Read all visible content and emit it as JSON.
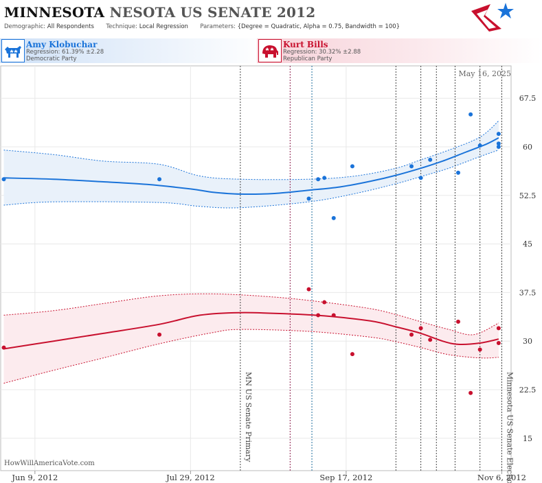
{
  "header": {
    "title_main": "MINNESOTA",
    "title_rest": "NESOTA US SENATE 2012",
    "demographic_label": "Demographic:",
    "demographic_value": "All Respondents",
    "technique_label": "Technique:",
    "technique_value": "Local Regression",
    "parameters_label": "Parameters:",
    "parameters_value": "{Degree = Quadratic, Alpha = 0.75, Bandwidth = 100}"
  },
  "candidates": {
    "dem": {
      "name": "Amy Klobuchar",
      "regression": "Regression: 61.39% ±2.28",
      "party": "Democratic Party",
      "color": "#1a73d9"
    },
    "rep": {
      "name": "Kurt Bills",
      "regression": "Regression: 30.32% ±2.88",
      "party": "Republican Party",
      "color": "#c8102e"
    }
  },
  "watermark": "HowWillAmericaVote.com",
  "date_stamp": "May 16, 2025",
  "chart_data": {
    "type": "line",
    "x_range": [
      "2012-05-29",
      "2012-11-09"
    ],
    "ylim": [
      10,
      72.5
    ],
    "y_ticks": [
      15,
      22.5,
      30,
      37.5,
      45,
      52.5,
      60,
      67.5
    ],
    "x_ticks": [
      {
        "date": "2012-06-09",
        "label": "Jun 9, 2012"
      },
      {
        "date": "2012-07-29",
        "label": "Jul 29, 2012"
      },
      {
        "date": "2012-09-17",
        "label": "Sep 17, 2012"
      },
      {
        "date": "2012-11-06",
        "label": "Nov 6, 2012"
      }
    ],
    "grid": true,
    "events": [
      {
        "date": "2012-08-14",
        "label": "MN US Senate Primary",
        "color": "#444444"
      },
      {
        "date": "2012-08-30",
        "label": "",
        "color": "#8b1a4a"
      },
      {
        "date": "2012-09-06",
        "label": "",
        "color": "#1a6a9b"
      },
      {
        "date": "2012-10-03",
        "label": "",
        "color": "#444444"
      },
      {
        "date": "2012-10-11",
        "label": "",
        "color": "#444444"
      },
      {
        "date": "2012-10-16",
        "label": "",
        "color": "#444444"
      },
      {
        "date": "2012-10-22",
        "label": "",
        "color": "#444444"
      },
      {
        "date": "2012-10-30",
        "label": "",
        "color": "#444444"
      },
      {
        "date": "2012-11-06",
        "label": "Minnesota US Senate Election",
        "color": "#444444"
      }
    ],
    "series": [
      {
        "name": "Amy Klobuchar",
        "color": "#1a73d9",
        "fill": "#e9f1fa",
        "points": [
          [
            "2012-05-30",
            55
          ],
          [
            "2012-07-19",
            55
          ],
          [
            "2012-09-05",
            52
          ],
          [
            "2012-09-08",
            55
          ],
          [
            "2012-09-10",
            55.2
          ],
          [
            "2012-09-13",
            49
          ],
          [
            "2012-09-19",
            57
          ],
          [
            "2012-10-08",
            57
          ],
          [
            "2012-10-11",
            55.2
          ],
          [
            "2012-10-14",
            58
          ],
          [
            "2012-10-23",
            56
          ],
          [
            "2012-10-27",
            65
          ],
          [
            "2012-10-30",
            60.2
          ],
          [
            "2012-11-05",
            62
          ],
          [
            "2012-11-05",
            60.5
          ],
          [
            "2012-11-05",
            60
          ]
        ],
        "trend": [
          [
            "2012-05-30",
            55.2
          ],
          [
            "2012-06-15",
            55
          ],
          [
            "2012-07-01",
            54.6
          ],
          [
            "2012-07-15",
            54.2
          ],
          [
            "2012-07-29",
            53.5
          ],
          [
            "2012-08-05",
            53
          ],
          [
            "2012-08-14",
            52.7
          ],
          [
            "2012-08-25",
            52.8
          ],
          [
            "2012-09-05",
            53.3
          ],
          [
            "2012-09-15",
            53.8
          ],
          [
            "2012-09-25",
            54.7
          ],
          [
            "2012-10-03",
            55.6
          ],
          [
            "2012-10-11",
            56.7
          ],
          [
            "2012-10-18",
            57.8
          ],
          [
            "2012-10-25",
            59.1
          ],
          [
            "2012-11-01",
            60.4
          ],
          [
            "2012-11-05",
            61.39
          ]
        ],
        "upper": [
          [
            "2012-05-30",
            59.5
          ],
          [
            "2012-06-15",
            58.8
          ],
          [
            "2012-07-01",
            57.8
          ],
          [
            "2012-07-19",
            57.3
          ],
          [
            "2012-08-01",
            55.5
          ],
          [
            "2012-08-14",
            55
          ],
          [
            "2012-09-05",
            55
          ],
          [
            "2012-09-20",
            55.5
          ],
          [
            "2012-10-03",
            56.7
          ],
          [
            "2012-10-11",
            58
          ],
          [
            "2012-10-20",
            59.5
          ],
          [
            "2012-10-30",
            61.5
          ],
          [
            "2012-11-05",
            64
          ]
        ],
        "lower": [
          [
            "2012-05-30",
            51
          ],
          [
            "2012-06-15",
            51.5
          ],
          [
            "2012-07-19",
            51.4
          ],
          [
            "2012-08-01",
            50.8
          ],
          [
            "2012-08-14",
            50.6
          ],
          [
            "2012-09-05",
            51.5
          ],
          [
            "2012-09-20",
            52.8
          ],
          [
            "2012-10-03",
            54.3
          ],
          [
            "2012-10-11",
            55.4
          ],
          [
            "2012-10-20",
            56.7
          ],
          [
            "2012-10-30",
            58.5
          ],
          [
            "2012-11-05",
            59.5
          ]
        ]
      },
      {
        "name": "Kurt Bills",
        "color": "#c8102e",
        "fill": "#fcebee",
        "points": [
          [
            "2012-05-30",
            29
          ],
          [
            "2012-07-19",
            31
          ],
          [
            "2012-09-05",
            38
          ],
          [
            "2012-09-08",
            34
          ],
          [
            "2012-09-10",
            36
          ],
          [
            "2012-09-13",
            34
          ],
          [
            "2012-09-19",
            28
          ],
          [
            "2012-10-08",
            31
          ],
          [
            "2012-10-11",
            32
          ],
          [
            "2012-10-14",
            30.2
          ],
          [
            "2012-10-23",
            33
          ],
          [
            "2012-10-27",
            22
          ],
          [
            "2012-10-30",
            28.7
          ],
          [
            "2012-11-05",
            32
          ],
          [
            "2012-11-05",
            29.7
          ]
        ],
        "trend": [
          [
            "2012-05-30",
            28.8
          ],
          [
            "2012-06-15",
            30
          ],
          [
            "2012-07-01",
            31.2
          ],
          [
            "2012-07-19",
            32.6
          ],
          [
            "2012-08-01",
            34
          ],
          [
            "2012-08-14",
            34.4
          ],
          [
            "2012-08-30",
            34.2
          ],
          [
            "2012-09-10",
            33.9
          ],
          [
            "2012-09-25",
            33.1
          ],
          [
            "2012-10-03",
            32.2
          ],
          [
            "2012-10-11",
            31.2
          ],
          [
            "2012-10-18",
            30
          ],
          [
            "2012-10-23",
            29.5
          ],
          [
            "2012-10-30",
            29.7
          ],
          [
            "2012-11-05",
            30.32
          ]
        ],
        "upper": [
          [
            "2012-05-30",
            34
          ],
          [
            "2012-06-15",
            34.7
          ],
          [
            "2012-07-01",
            35.8
          ],
          [
            "2012-07-19",
            37
          ],
          [
            "2012-08-05",
            37.3
          ],
          [
            "2012-08-25",
            36.8
          ],
          [
            "2012-09-10",
            36
          ],
          [
            "2012-09-25",
            35
          ],
          [
            "2012-10-03",
            34.1
          ],
          [
            "2012-10-11",
            33
          ],
          [
            "2012-10-20",
            31.8
          ],
          [
            "2012-10-28",
            31
          ],
          [
            "2012-11-05",
            32.8
          ]
        ],
        "lower": [
          [
            "2012-05-30",
            23.5
          ],
          [
            "2012-06-15",
            25.5
          ],
          [
            "2012-07-01",
            27.4
          ],
          [
            "2012-07-19",
            29.6
          ],
          [
            "2012-08-05",
            31.3
          ],
          [
            "2012-08-14",
            31.8
          ],
          [
            "2012-09-05",
            31.5
          ],
          [
            "2012-09-25",
            30.6
          ],
          [
            "2012-10-03",
            29.9
          ],
          [
            "2012-10-11",
            29
          ],
          [
            "2012-10-20",
            27.9
          ],
          [
            "2012-10-30",
            27.4
          ],
          [
            "2012-11-05",
            27.5
          ]
        ]
      }
    ]
  }
}
